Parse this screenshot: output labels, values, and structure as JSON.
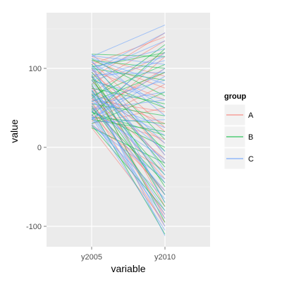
{
  "chart_data": {
    "type": "line",
    "x_field": "variable",
    "categories": [
      "y2005",
      "y2010"
    ],
    "xlabel": "variable",
    "ylabel": "value",
    "ylim": [
      -125,
      170
    ],
    "yticks": [
      -100,
      0,
      100
    ],
    "grid": true,
    "legend": {
      "title": "group",
      "position": "right",
      "entries": [
        "A",
        "B",
        "C"
      ]
    },
    "colors": {
      "A": "#F8766D",
      "B": "#00BA38",
      "C": "#619CFF"
    },
    "series": [
      {
        "name": "A",
        "values": [
          [
            58,
            -85
          ],
          [
            105,
            140
          ],
          [
            30,
            50
          ],
          [
            85,
            -20
          ],
          [
            70,
            120
          ],
          [
            25,
            -95
          ],
          [
            95,
            20
          ],
          [
            48,
            95
          ],
          [
            65,
            -40
          ],
          [
            110,
            75
          ],
          [
            40,
            10
          ],
          [
            80,
            135
          ],
          [
            55,
            -60
          ],
          [
            35,
            115
          ],
          [
            100,
            -10
          ],
          [
            60,
            45
          ],
          [
            90,
            -75
          ],
          [
            45,
            100
          ],
          [
            75,
            5
          ],
          [
            28,
            -30
          ],
          [
            115,
            90
          ],
          [
            52,
            -100
          ],
          [
            68,
            30
          ],
          [
            88,
            145
          ],
          [
            42,
            -55
          ],
          [
            98,
            60
          ],
          [
            62,
            -15
          ],
          [
            33,
            80
          ],
          [
            78,
            -90
          ],
          [
            108,
            25
          ]
        ]
      },
      {
        "name": "B",
        "values": [
          [
            62,
            130
          ],
          [
            90,
            -70
          ],
          [
            35,
            20
          ],
          [
            110,
            100
          ],
          [
            50,
            -45
          ],
          [
            75,
            55
          ],
          [
            28,
            -80
          ],
          [
            100,
            85
          ],
          [
            45,
            0
          ],
          [
            85,
            -25
          ],
          [
            118,
            115
          ],
          [
            55,
            40
          ],
          [
            68,
            -60
          ],
          [
            40,
            125
          ],
          [
            95,
            -5
          ],
          [
            30,
            70
          ],
          [
            80,
            -95
          ],
          [
            105,
            10
          ],
          [
            58,
            95
          ],
          [
            72,
            -35
          ],
          [
            48,
            -110
          ],
          [
            112,
            65
          ],
          [
            38,
            30
          ],
          [
            92,
            -50
          ],
          [
            65,
            105
          ],
          [
            25,
            -20
          ],
          [
            86,
            50
          ],
          [
            53,
            -75
          ],
          [
            102,
            120
          ],
          [
            44,
            15
          ]
        ]
      },
      {
        "name": "C",
        "values": [
          [
            72,
            -112
          ],
          [
            115,
            155
          ],
          [
            48,
            60
          ],
          [
            100,
            -30
          ],
          [
            85,
            110
          ],
          [
            30,
            -65
          ],
          [
            62,
            25
          ],
          [
            95,
            135
          ],
          [
            40,
            -90
          ],
          [
            110,
            -10
          ],
          [
            55,
            70
          ],
          [
            78,
            -45
          ],
          [
            35,
            100
          ],
          [
            118,
            40
          ],
          [
            67,
            -100
          ],
          [
            90,
            5
          ],
          [
            45,
            120
          ],
          [
            105,
            -70
          ],
          [
            58,
            85
          ],
          [
            82,
            -20
          ],
          [
            32,
            35
          ],
          [
            97,
            145
          ],
          [
            52,
            -55
          ],
          [
            113,
            80
          ],
          [
            70,
            -5
          ],
          [
            42,
            -85
          ],
          [
            88,
            115
          ],
          [
            60,
            -35
          ],
          [
            108,
            50
          ],
          [
            38,
            -105
          ],
          [
            92,
            95
          ],
          [
            66,
            15
          ],
          [
            27,
            -40
          ],
          [
            101,
            125
          ],
          [
            56,
            -80
          ],
          [
            84,
            60
          ],
          [
            46,
            -15
          ],
          [
            116,
            105
          ],
          [
            74,
            -60
          ],
          [
            36,
            90
          ]
        ]
      }
    ]
  }
}
